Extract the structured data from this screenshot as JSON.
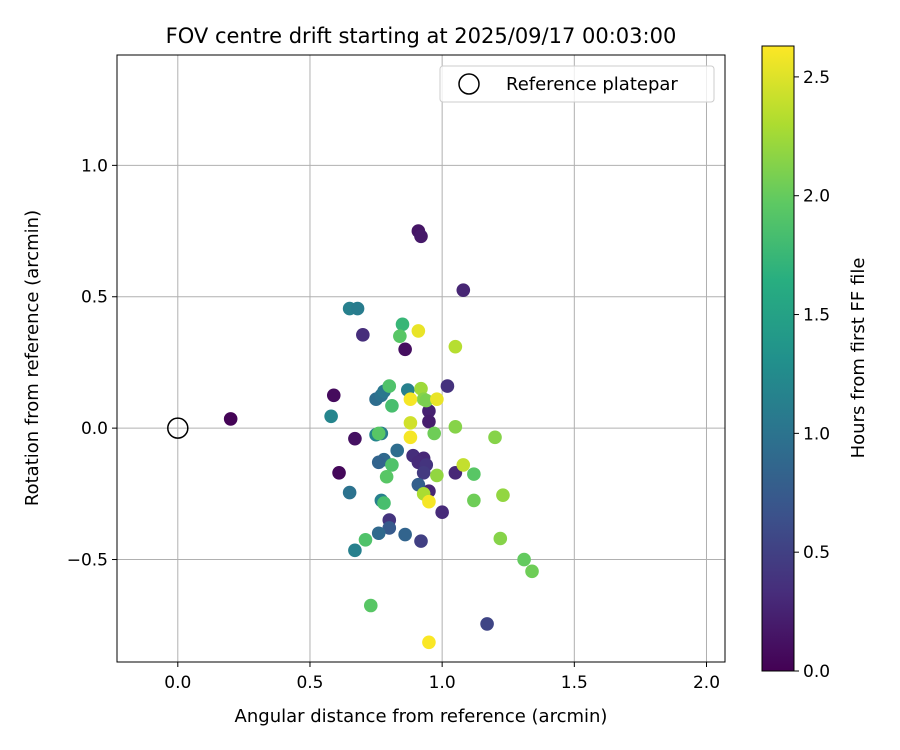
{
  "chart_data": {
    "type": "scatter",
    "title": "FOV centre drift starting at 2025/09/17 00:03:00",
    "xlabel": "Angular distance from reference (arcmin)",
    "ylabel": "Rotation from reference (arcmin)",
    "xlim": [
      -0.23,
      2.07
    ],
    "ylim": [
      -0.89,
      1.42
    ],
    "xticks": [
      0.0,
      0.5,
      1.0,
      1.5,
      2.0
    ],
    "xtick_labels": [
      "0.0",
      "0.5",
      "1.0",
      "1.5",
      "2.0"
    ],
    "yticks": [
      -0.5,
      0.0,
      0.5,
      1.0
    ],
    "ytick_labels": [
      "−0.5",
      "0.0",
      "0.5",
      "1.0"
    ],
    "grid": true,
    "legend": {
      "placement": "top-right",
      "entries": [
        "Reference platepar"
      ]
    },
    "reference_point": {
      "x": 0.0,
      "y": 0.0
    },
    "colorbar": {
      "label": "Hours from first FF file",
      "range": [
        0.0,
        2.63
      ],
      "colormap": "viridis",
      "ticks": [
        0.0,
        0.5,
        1.0,
        1.5,
        2.0,
        2.5
      ],
      "tick_labels": [
        "0.0",
        "0.5",
        "1.0",
        "1.5",
        "2.0",
        "2.5"
      ]
    },
    "points": [
      {
        "x": 0.2,
        "y": 0.035,
        "c": 0.02
      },
      {
        "x": 0.61,
        "y": -0.17,
        "c": 0.05
      },
      {
        "x": 0.59,
        "y": 0.125,
        "c": 0.08
      },
      {
        "x": 0.67,
        "y": -0.04,
        "c": 0.12
      },
      {
        "x": 0.86,
        "y": 0.3,
        "c": 0.1
      },
      {
        "x": 0.91,
        "y": 0.75,
        "c": 0.15
      },
      {
        "x": 0.92,
        "y": 0.73,
        "c": 0.18
      },
      {
        "x": 1.08,
        "y": 0.525,
        "c": 0.28
      },
      {
        "x": 0.7,
        "y": 0.355,
        "c": 0.35
      },
      {
        "x": 1.02,
        "y": 0.16,
        "c": 0.38
      },
      {
        "x": 0.95,
        "y": 0.065,
        "c": 0.25
      },
      {
        "x": 0.95,
        "y": 0.025,
        "c": 0.22
      },
      {
        "x": 0.89,
        "y": -0.105,
        "c": 0.35
      },
      {
        "x": 0.93,
        "y": -0.115,
        "c": 0.3
      },
      {
        "x": 0.91,
        "y": -0.13,
        "c": 0.32
      },
      {
        "x": 0.94,
        "y": -0.14,
        "c": 0.4
      },
      {
        "x": 0.93,
        "y": -0.17,
        "c": 0.45
      },
      {
        "x": 1.05,
        "y": -0.17,
        "c": 0.3
      },
      {
        "x": 0.95,
        "y": -0.24,
        "c": 0.28
      },
      {
        "x": 1.0,
        "y": -0.32,
        "c": 0.32
      },
      {
        "x": 0.8,
        "y": -0.35,
        "c": 0.4
      },
      {
        "x": 0.92,
        "y": -0.43,
        "c": 0.5
      },
      {
        "x": 1.17,
        "y": -0.745,
        "c": 0.55
      },
      {
        "x": 0.65,
        "y": 0.455,
        "c": 1.15
      },
      {
        "x": 0.68,
        "y": 0.455,
        "c": 1.1
      },
      {
        "x": 0.58,
        "y": 0.045,
        "c": 1.2
      },
      {
        "x": 0.75,
        "y": 0.11,
        "c": 0.95
      },
      {
        "x": 0.77,
        "y": 0.125,
        "c": 1.0
      },
      {
        "x": 0.78,
        "y": 0.14,
        "c": 1.05
      },
      {
        "x": 0.87,
        "y": 0.145,
        "c": 1.15
      },
      {
        "x": 0.75,
        "y": -0.025,
        "c": 1.2
      },
      {
        "x": 0.77,
        "y": -0.02,
        "c": 1.1
      },
      {
        "x": 0.83,
        "y": -0.085,
        "c": 0.95
      },
      {
        "x": 0.78,
        "y": -0.12,
        "c": 0.9
      },
      {
        "x": 0.76,
        "y": -0.13,
        "c": 0.85
      },
      {
        "x": 0.91,
        "y": -0.215,
        "c": 0.8
      },
      {
        "x": 0.65,
        "y": -0.245,
        "c": 1.0
      },
      {
        "x": 0.77,
        "y": -0.275,
        "c": 1.15
      },
      {
        "x": 0.8,
        "y": -0.38,
        "c": 0.75
      },
      {
        "x": 0.76,
        "y": -0.4,
        "c": 0.9
      },
      {
        "x": 0.86,
        "y": -0.405,
        "c": 0.85
      },
      {
        "x": 0.67,
        "y": -0.465,
        "c": 1.15
      },
      {
        "x": 0.85,
        "y": 0.395,
        "c": 1.75
      },
      {
        "x": 0.84,
        "y": 0.35,
        "c": 1.95
      },
      {
        "x": 0.8,
        "y": 0.16,
        "c": 1.9
      },
      {
        "x": 0.81,
        "y": 0.085,
        "c": 1.85
      },
      {
        "x": 0.76,
        "y": -0.02,
        "c": 1.95
      },
      {
        "x": 0.81,
        "y": -0.14,
        "c": 1.9
      },
      {
        "x": 0.79,
        "y": -0.185,
        "c": 1.95
      },
      {
        "x": 0.78,
        "y": -0.285,
        "c": 1.85
      },
      {
        "x": 0.71,
        "y": -0.425,
        "c": 1.9
      },
      {
        "x": 0.73,
        "y": -0.675,
        "c": 1.95
      },
      {
        "x": 0.92,
        "y": 0.15,
        "c": 2.25
      },
      {
        "x": 0.93,
        "y": 0.11,
        "c": 2.15
      },
      {
        "x": 0.94,
        "y": 0.105,
        "c": 2.1
      },
      {
        "x": 0.97,
        "y": -0.02,
        "c": 2.05
      },
      {
        "x": 0.98,
        "y": -0.18,
        "c": 2.2
      },
      {
        "x": 0.93,
        "y": -0.25,
        "c": 2.3
      },
      {
        "x": 1.05,
        "y": 0.005,
        "c": 2.15
      },
      {
        "x": 1.12,
        "y": -0.175,
        "c": 1.95
      },
      {
        "x": 1.12,
        "y": -0.275,
        "c": 2.05
      },
      {
        "x": 1.2,
        "y": -0.035,
        "c": 2.15
      },
      {
        "x": 1.23,
        "y": -0.255,
        "c": 2.2
      },
      {
        "x": 1.22,
        "y": -0.42,
        "c": 2.15
      },
      {
        "x": 1.31,
        "y": -0.5,
        "c": 2.0
      },
      {
        "x": 1.34,
        "y": -0.545,
        "c": 2.05
      },
      {
        "x": 0.91,
        "y": 0.37,
        "c": 2.55
      },
      {
        "x": 1.05,
        "y": 0.31,
        "c": 2.35
      },
      {
        "x": 0.88,
        "y": 0.11,
        "c": 2.6
      },
      {
        "x": 0.98,
        "y": 0.11,
        "c": 2.55
      },
      {
        "x": 0.88,
        "y": 0.02,
        "c": 2.45
      },
      {
        "x": 0.88,
        "y": -0.035,
        "c": 2.6
      },
      {
        "x": 1.08,
        "y": -0.14,
        "c": 2.4
      },
      {
        "x": 0.95,
        "y": -0.28,
        "c": 2.6
      },
      {
        "x": 0.95,
        "y": -0.815,
        "c": 2.62
      }
    ]
  }
}
